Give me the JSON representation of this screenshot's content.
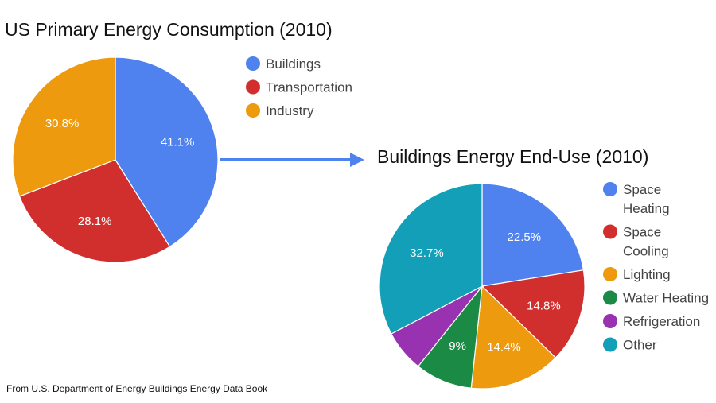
{
  "colors": {
    "blue": "#4f82ee",
    "red": "#d12f2e",
    "orange": "#ed9a0e",
    "green": "#1a8a44",
    "purple": "#9932b0",
    "teal": "#139fb8",
    "arrow": "#4f82ee"
  },
  "source_note": "From U.S. Department of Energy Buildings Energy Data Book",
  "chart_data": [
    {
      "type": "pie",
      "title": "US Primary Energy Consumption (2010)",
      "categories": [
        "Buildings",
        "Transportation",
        "Industry"
      ],
      "values": [
        41.1,
        28.1,
        30.8
      ],
      "labels": [
        "41.1%",
        "28.1%",
        "30.8%"
      ],
      "colors": [
        "#4f82ee",
        "#d12f2e",
        "#ed9a0e"
      ],
      "legend": [
        "Buildings",
        "Transportation",
        "Industry"
      ],
      "legend_position": "right"
    },
    {
      "type": "pie",
      "title": "Buildings Energy End-Use (2010)",
      "categories": [
        "Space Heating",
        "Space Cooling",
        "Lighting",
        "Water Heating",
        "Refrigeration",
        "Other"
      ],
      "values": [
        22.5,
        14.8,
        14.4,
        9,
        6.6,
        32.7
      ],
      "labels": [
        "22.5%",
        "14.8%",
        "14.4%",
        "9%",
        "",
        "32.7%"
      ],
      "colors": [
        "#4f82ee",
        "#d12f2e",
        "#ed9a0e",
        "#1a8a44",
        "#9932b0",
        "#139fb8"
      ],
      "legend": [
        [
          "Space",
          "Heating"
        ],
        [
          "Space",
          "Cooling"
        ],
        [
          "Lighting"
        ],
        [
          "Water Heating"
        ],
        [
          "Refrigeration"
        ],
        [
          "Other"
        ]
      ],
      "legend_position": "right"
    }
  ]
}
